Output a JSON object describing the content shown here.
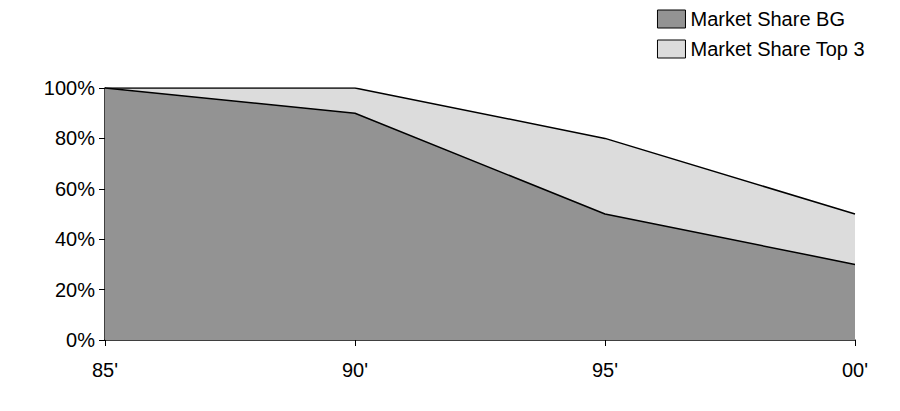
{
  "chart_data": {
    "type": "area",
    "categories": [
      "85'",
      "90'",
      "95'",
      "00'"
    ],
    "series": [
      {
        "name": "Market Share BG",
        "color": "#939393",
        "values": [
          100,
          90,
          50,
          30
        ]
      },
      {
        "name": "Market Share Top 3",
        "color": "#dcdcdc",
        "values": [
          100,
          100,
          80,
          50
        ]
      }
    ],
    "ylim": [
      0,
      100
    ],
    "yticks": [
      {
        "value": 0,
        "label": "0%"
      },
      {
        "value": 20,
        "label": "20%"
      },
      {
        "value": 40,
        "label": "40%"
      },
      {
        "value": 60,
        "label": "60%"
      },
      {
        "value": 80,
        "label": "80%"
      },
      {
        "value": 100,
        "label": "100%"
      }
    ],
    "grid": false,
    "stacked": false,
    "legend": "upper right"
  }
}
